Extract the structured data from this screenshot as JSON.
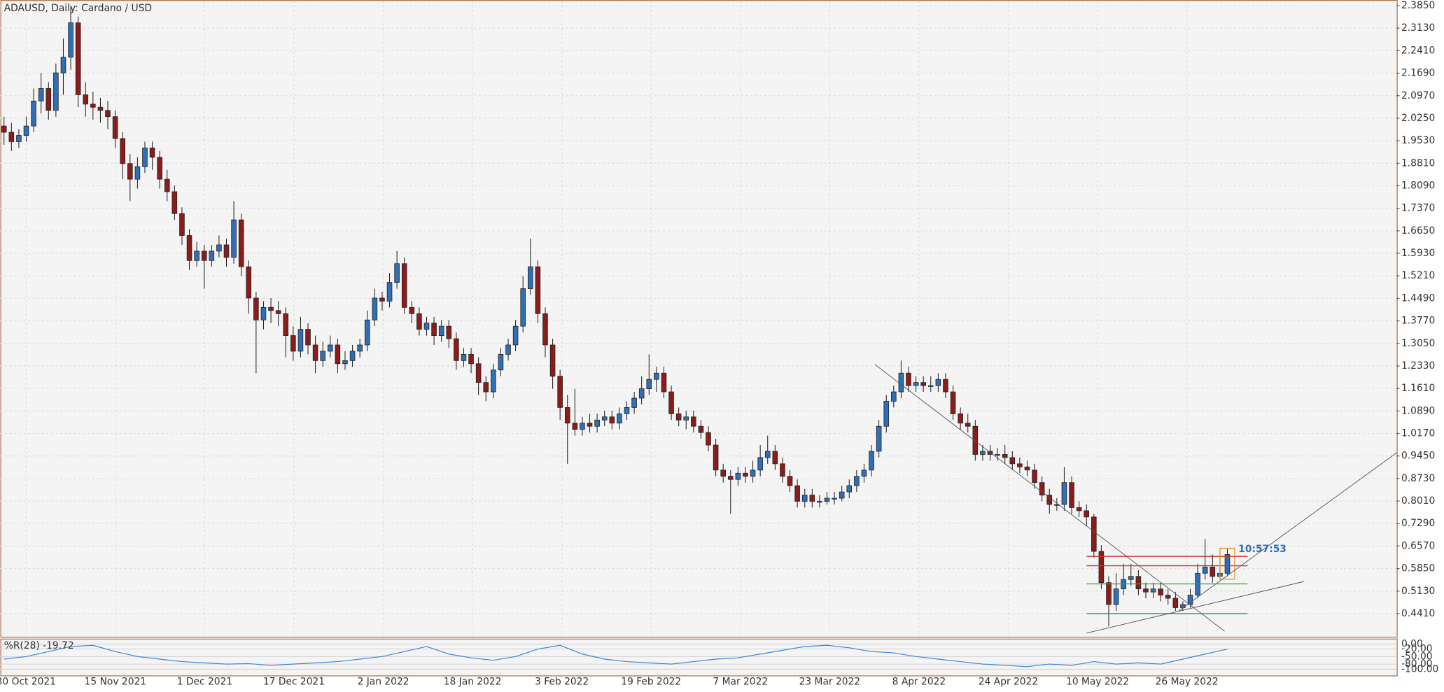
{
  "chart_data": {
    "type": "candlestick",
    "title": "ADAUSD, Daily:  Cardano / USD",
    "bull_color": "#2f6fb5",
    "bear_color": "#8a1c1c",
    "grid": true,
    "ohlc": [
      [
        2.0,
        2.03,
        1.94,
        1.98
      ],
      [
        1.98,
        2.01,
        1.92,
        1.95
      ],
      [
        1.95,
        1.99,
        1.93,
        1.97
      ],
      [
        1.97,
        2.03,
        1.95,
        2.0
      ],
      [
        2.0,
        2.12,
        1.98,
        2.08
      ],
      [
        2.08,
        2.17,
        2.04,
        2.12
      ],
      [
        2.12,
        2.14,
        2.02,
        2.05
      ],
      [
        2.05,
        2.2,
        2.03,
        2.17
      ],
      [
        2.17,
        2.28,
        2.1,
        2.22
      ],
      [
        2.22,
        2.38,
        2.18,
        2.33
      ],
      [
        2.33,
        2.35,
        2.06,
        2.1
      ],
      [
        2.1,
        2.14,
        2.03,
        2.07
      ],
      [
        2.07,
        2.11,
        2.02,
        2.06
      ],
      [
        2.06,
        2.09,
        2.01,
        2.05
      ],
      [
        2.05,
        2.08,
        1.99,
        2.03
      ],
      [
        2.03,
        2.05,
        1.93,
        1.96
      ],
      [
        1.96,
        1.98,
        1.83,
        1.88
      ],
      [
        1.88,
        1.91,
        1.76,
        1.83
      ],
      [
        1.83,
        1.9,
        1.8,
        1.87
      ],
      [
        1.87,
        1.95,
        1.85,
        1.93
      ],
      [
        1.93,
        1.95,
        1.86,
        1.9
      ],
      [
        1.9,
        1.92,
        1.8,
        1.83
      ],
      [
        1.83,
        1.86,
        1.76,
        1.79
      ],
      [
        1.79,
        1.81,
        1.7,
        1.72
      ],
      [
        1.72,
        1.74,
        1.62,
        1.65
      ],
      [
        1.65,
        1.67,
        1.54,
        1.57
      ],
      [
        1.57,
        1.63,
        1.55,
        1.6
      ],
      [
        1.6,
        1.62,
        1.48,
        1.57
      ],
      [
        1.57,
        1.62,
        1.55,
        1.6
      ],
      [
        1.6,
        1.65,
        1.58,
        1.62
      ],
      [
        1.62,
        1.64,
        1.55,
        1.58
      ],
      [
        1.58,
        1.76,
        1.56,
        1.7
      ],
      [
        1.7,
        1.72,
        1.52,
        1.55
      ],
      [
        1.55,
        1.57,
        1.4,
        1.45
      ],
      [
        1.45,
        1.47,
        1.21,
        1.38
      ],
      [
        1.38,
        1.44,
        1.35,
        1.42
      ],
      [
        1.42,
        1.45,
        1.37,
        1.41
      ],
      [
        1.41,
        1.44,
        1.36,
        1.4
      ],
      [
        1.4,
        1.42,
        1.26,
        1.33
      ],
      [
        1.33,
        1.36,
        1.25,
        1.28
      ],
      [
        1.28,
        1.39,
        1.26,
        1.35
      ],
      [
        1.35,
        1.37,
        1.27,
        1.3
      ],
      [
        1.3,
        1.33,
        1.21,
        1.25
      ],
      [
        1.25,
        1.31,
        1.23,
        1.28
      ],
      [
        1.28,
        1.33,
        1.26,
        1.3
      ],
      [
        1.3,
        1.32,
        1.21,
        1.24
      ],
      [
        1.24,
        1.28,
        1.22,
        1.25
      ],
      [
        1.25,
        1.3,
        1.23,
        1.28
      ],
      [
        1.28,
        1.32,
        1.26,
        1.3
      ],
      [
        1.3,
        1.41,
        1.28,
        1.38
      ],
      [
        1.38,
        1.48,
        1.36,
        1.45
      ],
      [
        1.45,
        1.47,
        1.41,
        1.44
      ],
      [
        1.44,
        1.53,
        1.42,
        1.5
      ],
      [
        1.5,
        1.6,
        1.48,
        1.56
      ],
      [
        1.56,
        1.58,
        1.4,
        1.42
      ],
      [
        1.42,
        1.44,
        1.37,
        1.4
      ],
      [
        1.4,
        1.42,
        1.33,
        1.35
      ],
      [
        1.35,
        1.39,
        1.33,
        1.37
      ],
      [
        1.37,
        1.39,
        1.3,
        1.33
      ],
      [
        1.33,
        1.38,
        1.31,
        1.36
      ],
      [
        1.36,
        1.38,
        1.29,
        1.32
      ],
      [
        1.32,
        1.34,
        1.22,
        1.25
      ],
      [
        1.25,
        1.29,
        1.23,
        1.27
      ],
      [
        1.27,
        1.29,
        1.21,
        1.24
      ],
      [
        1.24,
        1.26,
        1.14,
        1.18
      ],
      [
        1.18,
        1.2,
        1.12,
        1.15
      ],
      [
        1.15,
        1.24,
        1.13,
        1.22
      ],
      [
        1.22,
        1.29,
        1.2,
        1.27
      ],
      [
        1.27,
        1.32,
        1.25,
        1.3
      ],
      [
        1.3,
        1.38,
        1.28,
        1.36
      ],
      [
        1.36,
        1.52,
        1.34,
        1.48
      ],
      [
        1.48,
        1.64,
        1.46,
        1.55
      ],
      [
        1.55,
        1.57,
        1.37,
        1.4
      ],
      [
        1.4,
        1.42,
        1.26,
        1.3
      ],
      [
        1.3,
        1.32,
        1.16,
        1.2
      ],
      [
        1.2,
        1.22,
        1.06,
        1.1
      ],
      [
        1.1,
        1.14,
        0.92,
        1.05
      ],
      [
        1.05,
        1.16,
        1.01,
        1.03
      ],
      [
        1.03,
        1.07,
        1.01,
        1.05
      ],
      [
        1.05,
        1.08,
        1.02,
        1.04
      ],
      [
        1.04,
        1.08,
        1.02,
        1.06
      ],
      [
        1.06,
        1.09,
        1.04,
        1.07
      ],
      [
        1.07,
        1.09,
        1.03,
        1.05
      ],
      [
        1.05,
        1.1,
        1.03,
        1.08
      ],
      [
        1.08,
        1.12,
        1.06,
        1.1
      ],
      [
        1.1,
        1.15,
        1.08,
        1.13
      ],
      [
        1.13,
        1.2,
        1.11,
        1.16
      ],
      [
        1.16,
        1.27,
        1.14,
        1.19
      ],
      [
        1.19,
        1.23,
        1.15,
        1.21
      ],
      [
        1.21,
        1.23,
        1.13,
        1.15
      ],
      [
        1.15,
        1.17,
        1.06,
        1.08
      ],
      [
        1.08,
        1.1,
        1.04,
        1.06
      ],
      [
        1.06,
        1.09,
        1.03,
        1.07
      ],
      [
        1.07,
        1.09,
        1.02,
        1.04
      ],
      [
        1.04,
        1.06,
        1.0,
        1.02
      ],
      [
        1.02,
        1.04,
        0.96,
        0.98
      ],
      [
        0.98,
        1.0,
        0.88,
        0.9
      ],
      [
        0.9,
        0.92,
        0.86,
        0.88
      ],
      [
        0.88,
        0.9,
        0.76,
        0.87
      ],
      [
        0.87,
        0.91,
        0.85,
        0.89
      ],
      [
        0.89,
        0.91,
        0.86,
        0.88
      ],
      [
        0.88,
        0.93,
        0.86,
        0.9
      ],
      [
        0.9,
        0.98,
        0.88,
        0.94
      ],
      [
        0.94,
        1.01,
        0.92,
        0.96
      ],
      [
        0.96,
        0.98,
        0.9,
        0.92
      ],
      [
        0.92,
        0.94,
        0.86,
        0.88
      ],
      [
        0.88,
        0.9,
        0.83,
        0.85
      ],
      [
        0.85,
        0.87,
        0.78,
        0.8
      ],
      [
        0.8,
        0.84,
        0.78,
        0.82
      ],
      [
        0.82,
        0.84,
        0.78,
        0.8
      ],
      [
        0.8,
        0.82,
        0.78,
        0.8
      ],
      [
        0.8,
        0.83,
        0.79,
        0.81
      ],
      [
        0.81,
        0.83,
        0.79,
        0.81
      ],
      [
        0.81,
        0.85,
        0.8,
        0.83
      ],
      [
        0.83,
        0.87,
        0.81,
        0.85
      ],
      [
        0.85,
        0.9,
        0.83,
        0.88
      ],
      [
        0.88,
        0.92,
        0.86,
        0.9
      ],
      [
        0.9,
        0.98,
        0.88,
        0.96
      ],
      [
        0.96,
        1.06,
        0.94,
        1.04
      ],
      [
        1.04,
        1.14,
        1.02,
        1.12
      ],
      [
        1.12,
        1.17,
        1.1,
        1.15
      ],
      [
        1.15,
        1.25,
        1.13,
        1.21
      ],
      [
        1.21,
        1.23,
        1.15,
        1.17
      ],
      [
        1.17,
        1.2,
        1.15,
        1.18
      ],
      [
        1.18,
        1.2,
        1.15,
        1.17
      ],
      [
        1.17,
        1.2,
        1.15,
        1.17
      ],
      [
        1.17,
        1.21,
        1.15,
        1.19
      ],
      [
        1.19,
        1.21,
        1.13,
        1.15
      ],
      [
        1.15,
        1.17,
        1.06,
        1.08
      ],
      [
        1.08,
        1.1,
        1.03,
        1.05
      ],
      [
        1.05,
        1.08,
        1.02,
        1.04
      ],
      [
        1.04,
        1.06,
        0.93,
        0.95
      ],
      [
        0.95,
        0.98,
        0.93,
        0.96
      ],
      [
        0.96,
        0.98,
        0.93,
        0.95
      ],
      [
        0.95,
        0.97,
        0.93,
        0.95
      ],
      [
        0.95,
        0.98,
        0.92,
        0.94
      ],
      [
        0.94,
        0.96,
        0.9,
        0.92
      ],
      [
        0.92,
        0.94,
        0.89,
        0.91
      ],
      [
        0.91,
        0.93,
        0.88,
        0.9
      ],
      [
        0.9,
        0.92,
        0.84,
        0.86
      ],
      [
        0.86,
        0.88,
        0.8,
        0.82
      ],
      [
        0.82,
        0.84,
        0.76,
        0.79
      ],
      [
        0.79,
        0.81,
        0.77,
        0.79
      ],
      [
        0.79,
        0.91,
        0.77,
        0.86
      ],
      [
        0.86,
        0.88,
        0.76,
        0.78
      ],
      [
        0.78,
        0.8,
        0.75,
        0.77
      ],
      [
        0.77,
        0.79,
        0.72,
        0.75
      ],
      [
        0.75,
        0.76,
        0.62,
        0.64
      ],
      [
        0.64,
        0.66,
        0.52,
        0.54
      ],
      [
        0.54,
        0.56,
        0.4,
        0.47
      ],
      [
        0.47,
        0.57,
        0.45,
        0.52
      ],
      [
        0.52,
        0.6,
        0.5,
        0.55
      ],
      [
        0.55,
        0.6,
        0.53,
        0.56
      ],
      [
        0.56,
        0.58,
        0.5,
        0.52
      ],
      [
        0.52,
        0.54,
        0.49,
        0.51
      ],
      [
        0.51,
        0.54,
        0.49,
        0.52
      ],
      [
        0.52,
        0.54,
        0.48,
        0.5
      ],
      [
        0.5,
        0.52,
        0.47,
        0.49
      ],
      [
        0.49,
        0.51,
        0.45,
        0.46
      ],
      [
        0.46,
        0.48,
        0.45,
        0.47
      ],
      [
        0.47,
        0.52,
        0.46,
        0.5
      ],
      [
        0.5,
        0.6,
        0.49,
        0.57
      ],
      [
        0.57,
        0.68,
        0.55,
        0.59
      ],
      [
        0.59,
        0.63,
        0.54,
        0.56
      ],
      [
        0.56,
        0.59,
        0.55,
        0.57
      ],
      [
        0.57,
        0.65,
        0.56,
        0.63
      ]
    ],
    "ylim": [
      0.367,
      2.4
    ],
    "yticks": [
      {
        "value": 2.385,
        "label": "2.3850"
      },
      {
        "value": 2.313,
        "label": "2.3130"
      },
      {
        "value": 2.241,
        "label": "2.2410"
      },
      {
        "value": 2.169,
        "label": "2.1690"
      },
      {
        "value": 2.097,
        "label": "2.0970"
      },
      {
        "value": 2.025,
        "label": "2.0250"
      },
      {
        "value": 1.953,
        "label": "1.9530"
      },
      {
        "value": 1.881,
        "label": "1.8810"
      },
      {
        "value": 1.809,
        "label": "1.8090"
      },
      {
        "value": 1.737,
        "label": "1.7370"
      },
      {
        "value": 1.665,
        "label": "1.6650"
      },
      {
        "value": 1.593,
        "label": "1.5930"
      },
      {
        "value": 1.521,
        "label": "1.5210"
      },
      {
        "value": 1.449,
        "label": "1.4490"
      },
      {
        "value": 1.377,
        "label": "1.3770"
      },
      {
        "value": 1.305,
        "label": "1.3050"
      },
      {
        "value": 1.233,
        "label": "1.2330"
      },
      {
        "value": 1.161,
        "label": "1.1610"
      },
      {
        "value": 1.089,
        "label": "1.0890"
      },
      {
        "value": 1.017,
        "label": "1.0170"
      },
      {
        "value": 0.945,
        "label": "0.9450"
      },
      {
        "value": 0.873,
        "label": "0.8730"
      },
      {
        "value": 0.801,
        "label": "0.8010"
      },
      {
        "value": 0.729,
        "label": "0.7290"
      },
      {
        "value": 0.657,
        "label": "0.6570"
      },
      {
        "value": 0.585,
        "label": "0.5850"
      },
      {
        "value": 0.513,
        "label": "0.5130"
      },
      {
        "value": 0.441,
        "label": "0.4410"
      }
    ],
    "x_labels": [
      "30 Oct 2021",
      "15 Nov 2021",
      "1 Dec 2021",
      "17 Dec 2021",
      "2 Jan 2022",
      "18 Jan 2022",
      "3 Feb 2022",
      "19 Feb 2022",
      "7 Mar 2022",
      "23 Mar 2022",
      "8 Apr 2022",
      "24 Apr 2022",
      "10 May 2022",
      "26 May 2022"
    ],
    "levels": [
      {
        "value": 0.624,
        "color": "#c0392b"
      },
      {
        "value": 0.594,
        "color": "#c0392b"
      },
      {
        "value": 0.536,
        "color": "#2e9e3e"
      },
      {
        "value": 0.441,
        "color": "#2e9e3e"
      }
    ],
    "timer": "10:57:53",
    "indicator": {
      "title": "%R(28) -19.72",
      "color": "#3a86d8",
      "ylim": [
        -125,
        18
      ],
      "yticks": [
        {
          "value": 0,
          "label": "0.00"
        },
        {
          "value": -20,
          "label": "-20.00"
        },
        {
          "value": -50,
          "label": "-50.00"
        },
        {
          "value": -80,
          "label": "-80.00"
        },
        {
          "value": -100,
          "label": "-100.00"
        }
      ],
      "values": [
        -60,
        -50,
        -30,
        -10,
        -5,
        -30,
        -50,
        -60,
        -70,
        -75,
        -80,
        -78,
        -85,
        -80,
        -75,
        -70,
        -60,
        -50,
        -30,
        -10,
        -40,
        -55,
        -65,
        -50,
        -20,
        -5,
        -40,
        -60,
        -70,
        -75,
        -80,
        -70,
        -60,
        -55,
        -40,
        -25,
        -10,
        -5,
        -15,
        -30,
        -35,
        -50,
        -60,
        -70,
        -80,
        -85,
        -90,
        -80,
        -85,
        -70,
        -80,
        -75,
        -80,
        -60,
        -40,
        -20
      ]
    }
  }
}
